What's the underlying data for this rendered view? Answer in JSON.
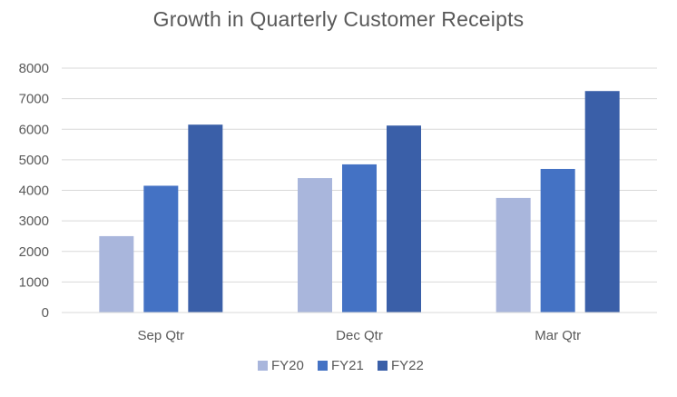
{
  "chart_data": {
    "type": "bar",
    "title": "Growth in Quarterly Customer Receipts",
    "categories": [
      "Sep Qtr",
      "Dec Qtr",
      "Mar Qtr"
    ],
    "series": [
      {
        "name": "FY20",
        "color": "#a9b6dc",
        "values": [
          2500,
          4400,
          3750
        ]
      },
      {
        "name": "FY21",
        "color": "#4472c4",
        "values": [
          4150,
          4850,
          4700
        ]
      },
      {
        "name": "FY22",
        "color": "#3a5fa8",
        "values": [
          6150,
          6120,
          7250
        ]
      }
    ],
    "ylim": [
      0,
      8000
    ],
    "yticks": [
      0,
      1000,
      2000,
      3000,
      4000,
      5000,
      6000,
      7000,
      8000
    ],
    "grid": true,
    "legend": "bottom"
  }
}
